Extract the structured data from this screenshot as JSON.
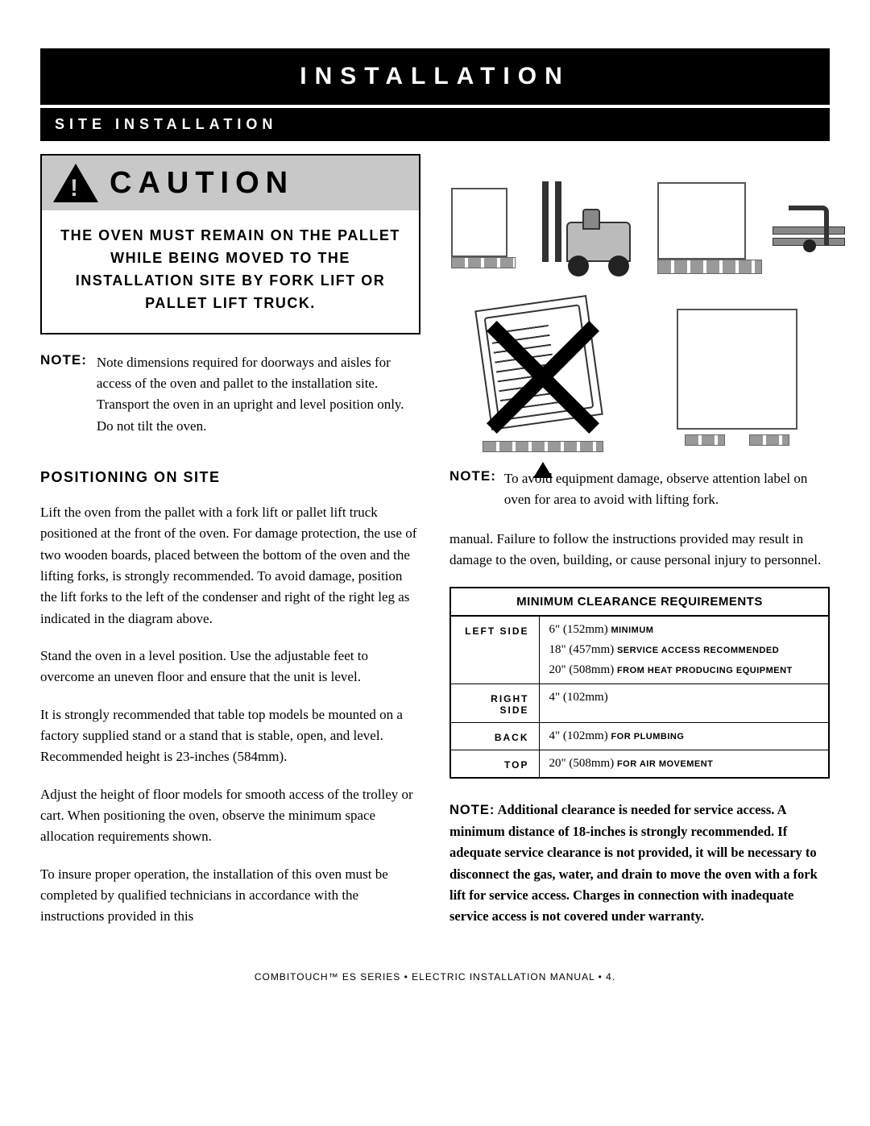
{
  "header": "INSTALLATION",
  "subheader": "SITE INSTALLATION",
  "caution": {
    "title": "CAUTION",
    "body": "THE OVEN MUST REMAIN ON THE PALLET WHILE BEING MOVED TO THE INSTALLATION SITE BY FORK LIFT OR PALLET LIFT TRUCK."
  },
  "note1": {
    "label": "NOTE:",
    "text": "Note dimensions required for doorways and aisles for access of the oven and pallet to the installation site.  Transport the oven in an upright and level position only.  Do not tilt the oven."
  },
  "positioning": {
    "heading": "POSITIONING ON SITE",
    "p1": "Lift the oven from the pallet with a fork lift or pallet lift truck positioned at the front of the oven.  For damage protection, the use of two wooden boards, placed between the bottom of the oven and the lifting forks, is strongly recommended.  To avoid damage, position the lift forks to the left of the condenser and right of the right leg as indicated in the diagram above.",
    "p2": "Stand the oven in a level position.  Use the adjustable feet to overcome an uneven floor and ensure that the unit is level.",
    "p3": "It is strongly recommended that table top models be mounted on a factory supplied stand or a stand that is stable, open, and level.  Recommended height is 23-inches (584mm).",
    "p4": "Adjust the height of floor models for smooth access of the trolley or cart.  When positioning the oven, observe the minimum space allocation requirements shown.",
    "p5": "To insure proper operation, the installation of this oven must be completed by qualified technicians in accordance with the instructions provided in this"
  },
  "note2": {
    "label": "NOTE:",
    "text": "To avoid equipment damage, observe attention label on oven for area to avoid with lifting fork."
  },
  "rcol_cont": "manual.  Failure to follow the instructions provided may result in damage to the oven, building, or cause personal injury to personnel.",
  "table": {
    "title": "MINIMUM CLEARANCE REQUIREMENTS",
    "rows": [
      {
        "label": "LEFT SIDE",
        "lines": [
          {
            "v": "6\" (152mm)",
            "note": "MINIMUM"
          },
          {
            "v": "18\" (457mm)",
            "note": "SERVICE ACCESS RECOMMENDED"
          },
          {
            "v": "20\" (508mm)",
            "note": "FROM HEAT PRODUCING EQUIPMENT"
          }
        ]
      },
      {
        "label": "RIGHT SIDE",
        "lines": [
          {
            "v": "4\" (102mm)",
            "note": ""
          }
        ]
      },
      {
        "label": "BACK",
        "lines": [
          {
            "v": "4\" (102mm)",
            "note": "FOR PLUMBING"
          }
        ]
      },
      {
        "label": "TOP",
        "lines": [
          {
            "v": "20\" (508mm)",
            "note": "FOR AIR MOVEMENT"
          }
        ]
      }
    ]
  },
  "note3": {
    "label": "NOTE:",
    "text": "Additional clearance is needed for service access.  A minimum distance of 18-inches is strongly recommended.  If adequate service clearance is not provided, it will be necessary to disconnect the gas, water, and drain to move the oven with a fork lift for service access.  Charges in connection with inadequate service access is not covered under warranty."
  },
  "footer": "COMBITOUCH™ ES SERIES • ELECTRIC INSTALLATION MANUAL • 4."
}
